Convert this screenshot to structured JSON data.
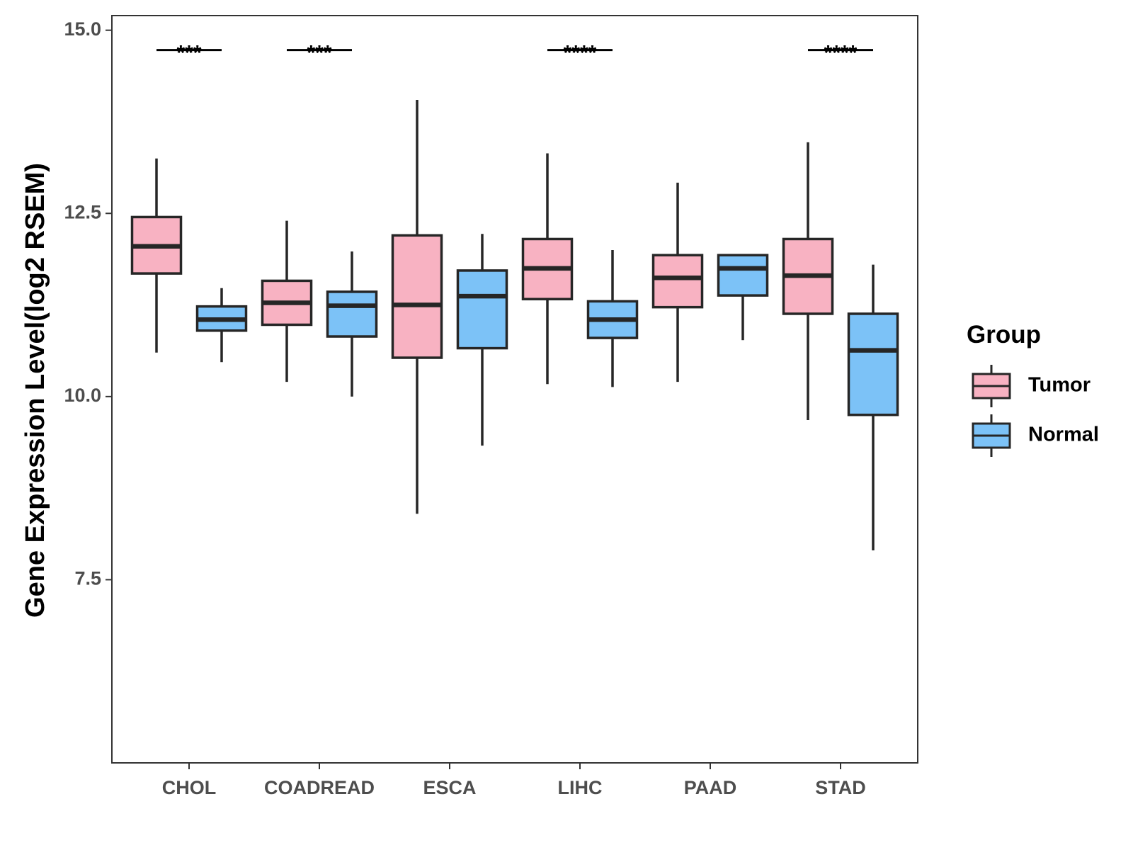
{
  "chart_data": {
    "type": "boxplot",
    "title": "",
    "xlabel": "",
    "ylabel": "Gene Expression Level(log2 RSEM)",
    "ylim": [
      5.0,
      15.2
    ],
    "yticks": [
      7.5,
      10.0,
      12.5,
      15.0
    ],
    "ytick_labels": [
      "7.5",
      "10.0",
      "12.5",
      "15.0"
    ],
    "categories": [
      "CHOL",
      "COADREAD",
      "ESCA",
      "LIHC",
      "PAAD",
      "STAD"
    ],
    "legend": {
      "title": "Group",
      "position": "right"
    },
    "series": [
      {
        "name": "Tumor",
        "color": "#f8b2c2",
        "boxes": [
          {
            "min": 10.6,
            "q1": 11.68,
            "median": 12.05,
            "q3": 12.45,
            "max": 13.25
          },
          {
            "min": 10.2,
            "q1": 10.98,
            "median": 11.28,
            "q3": 11.58,
            "max": 12.4
          },
          {
            "min": 8.4,
            "q1": 10.53,
            "median": 11.25,
            "q3": 12.2,
            "max": 14.05
          },
          {
            "min": 10.17,
            "q1": 11.33,
            "median": 11.75,
            "q3": 12.15,
            "max": 13.32
          },
          {
            "min": 10.2,
            "q1": 11.22,
            "median": 11.62,
            "q3": 11.93,
            "max": 12.92
          },
          {
            "min": 9.68,
            "q1": 11.13,
            "median": 11.65,
            "q3": 12.15,
            "max": 13.47
          }
        ]
      },
      {
        "name": "Normal",
        "color": "#7cc2f7",
        "boxes": [
          {
            "min": 10.47,
            "q1": 10.9,
            "median": 11.05,
            "q3": 11.23,
            "max": 11.48
          },
          {
            "min": 10.0,
            "q1": 10.82,
            "median": 11.24,
            "q3": 11.43,
            "max": 11.98
          },
          {
            "min": 9.33,
            "q1": 10.66,
            "median": 11.37,
            "q3": 11.72,
            "max": 12.22
          },
          {
            "min": 10.13,
            "q1": 10.8,
            "median": 11.05,
            "q3": 11.3,
            "max": 12.0
          },
          {
            "min": 10.77,
            "q1": 11.38,
            "median": 11.75,
            "q3": 11.93,
            "max": 11.93
          },
          {
            "min": 7.9,
            "q1": 9.75,
            "median": 10.63,
            "q3": 11.13,
            "max": 11.8
          }
        ]
      }
    ],
    "annotations": [
      {
        "category": "CHOL",
        "label": "***"
      },
      {
        "category": "COADREAD",
        "label": "***"
      },
      {
        "category": "LIHC",
        "label": "****"
      },
      {
        "category": "STAD",
        "label": "****"
      }
    ]
  }
}
